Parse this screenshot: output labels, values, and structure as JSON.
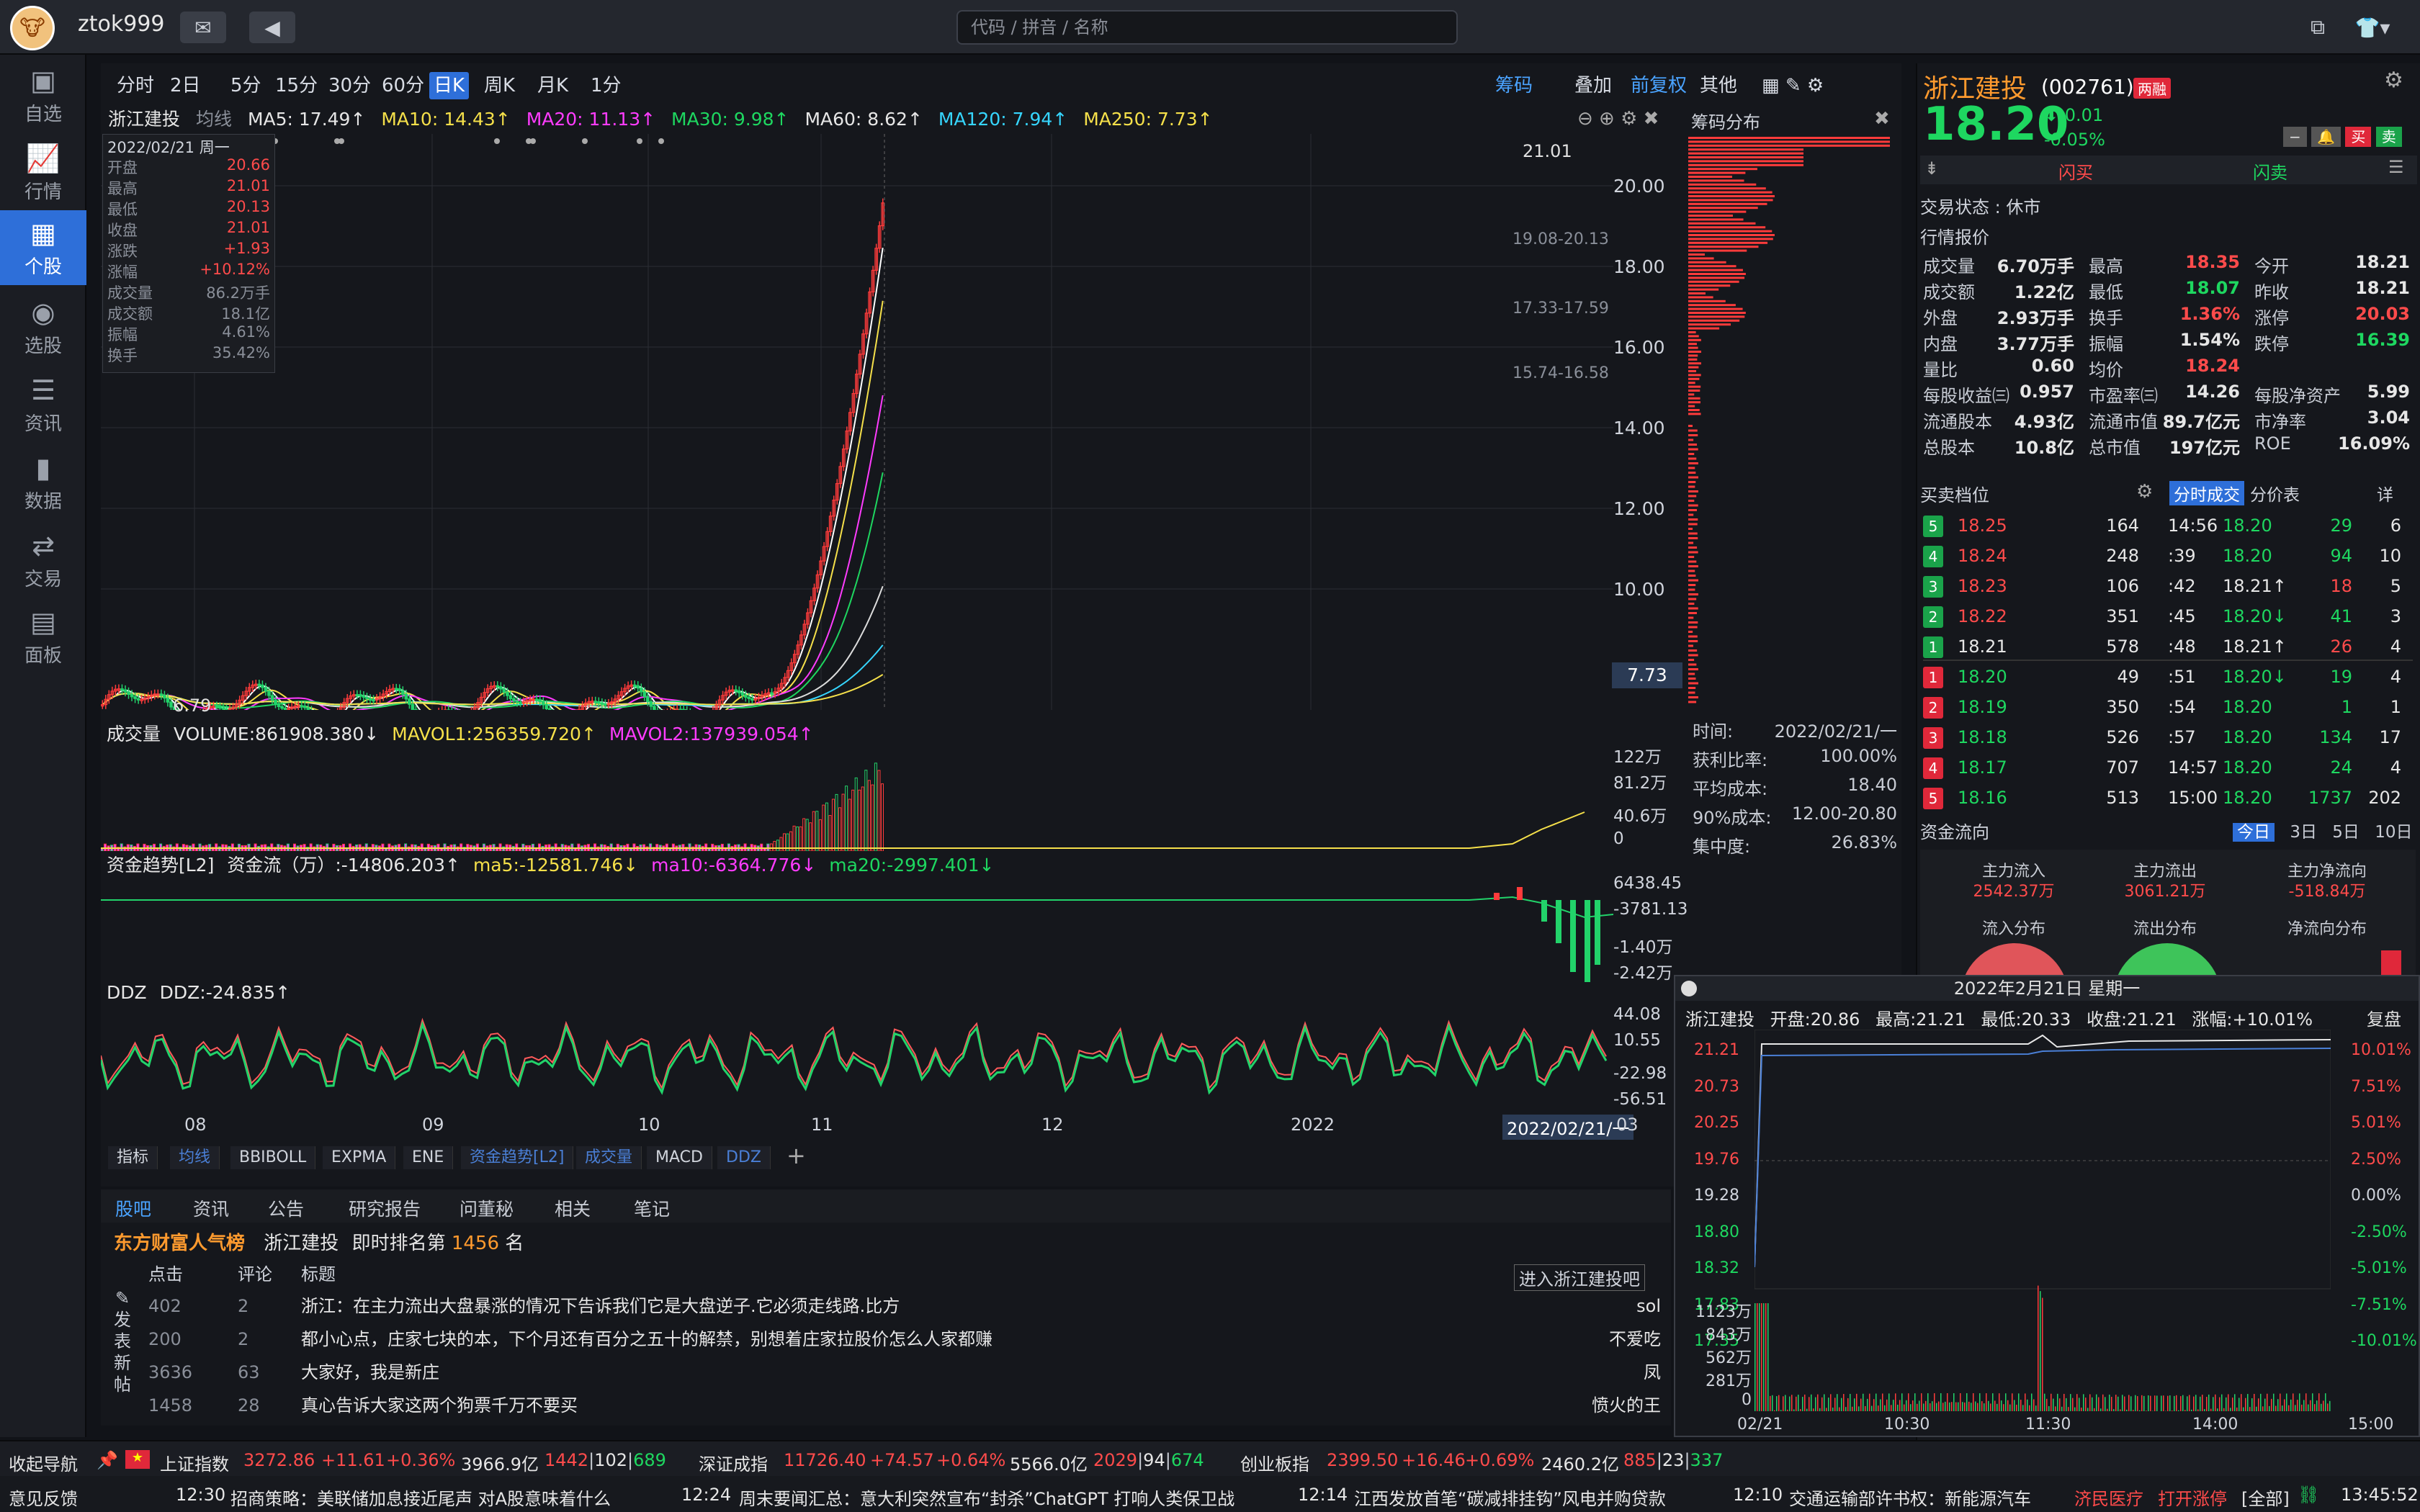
{
  "titlebar": {
    "username": "ztok999",
    "search_placeholder": "代码 / 拼音 / 名称"
  },
  "sidebar": [
    {
      "label": "自选",
      "icon": "watchlist-icon"
    },
    {
      "label": "行情",
      "icon": "market-icon"
    },
    {
      "label": "个股",
      "icon": "stock-icon"
    },
    {
      "label": "选股",
      "icon": "screener-icon"
    },
    {
      "label": "资讯",
      "icon": "news-icon"
    },
    {
      "label": "数据",
      "icon": "data-icon"
    },
    {
      "label": "交易",
      "icon": "trade-icon"
    },
    {
      "label": "面板",
      "icon": "panel-icon"
    }
  ],
  "periods": [
    "分时",
    "2日",
    "5分",
    "15分",
    "30分",
    "60分",
    "日K",
    "周K",
    "月K",
    "1分"
  ],
  "period_active": "日K",
  "chart_toolbar": {
    "chips": "筹码",
    "overlay": "叠加",
    "adjust": "前复权",
    "other": "其他"
  },
  "stock": {
    "name": "浙江建投",
    "code": "(002761)",
    "tag": "两融",
    "price": "18.20",
    "change": "-0.01",
    "change_pct": "-0.05%"
  },
  "ma_line": {
    "name": "浙江建投",
    "mode": "均线",
    "ma5": "MA5: 17.49↑",
    "ma10": "MA10: 14.43↑",
    "ma20": "MA20: 11.13↑",
    "ma30": "MA30: 9.98↑",
    "ma60": "MA60: 8.62↑",
    "ma120": "MA120: 7.94↑",
    "ma250": "MA250: 7.73↑"
  },
  "infobox": {
    "date": "2022/02/21 周一",
    "rows": [
      {
        "k": "开盘",
        "v": "20.66"
      },
      {
        "k": "最高",
        "v": "21.01"
      },
      {
        "k": "最低",
        "v": "20.13"
      },
      {
        "k": "收盘",
        "v": "21.01"
      },
      {
        "k": "涨跌",
        "v": "+1.93"
      },
      {
        "k": "涨幅",
        "v": "+10.12%"
      },
      {
        "k": "成交量",
        "v": "86.2万手"
      },
      {
        "k": "成交额",
        "v": "18.1亿"
      },
      {
        "k": "振幅",
        "v": "4.61%"
      },
      {
        "k": "换手",
        "v": "35.42%"
      }
    ]
  },
  "price_axis": [
    "20.00",
    "18.00",
    "16.00",
    "14.00",
    "12.00",
    "10.00"
  ],
  "price_marks": {
    "high": "21.01",
    "low": "6.79",
    "current": "7.73",
    "zone1": "19.08-20.13",
    "zone2": "17.33-17.59",
    "zone3": "15.74-16.58"
  },
  "chips": {
    "title": "筹码分布",
    "rows": [
      {
        "k": "时间:",
        "v": "2022/02/21/一"
      },
      {
        "k": "获利比率:",
        "v": "100.00%"
      },
      {
        "k": "平均成本:",
        "v": "18.40"
      },
      {
        "k": "90%成本:",
        "v": "12.00-20.80"
      },
      {
        "k": "集中度:",
        "v": "26.83%"
      }
    ]
  },
  "volume": {
    "label": "成交量",
    "volume": "VOLUME:861908.380↓",
    "mavol1": "MAVOL1:256359.720↑",
    "mavol2": "MAVOL2:137939.054↑",
    "axis": [
      "122万",
      "81.2万",
      "40.6万",
      "0"
    ]
  },
  "fund": {
    "label": "资金趋势[L2]",
    "flow": "资金流（万）:-14806.203↑",
    "ma5": "ma5:-12581.746↓",
    "ma10": "ma10:-6364.776↓",
    "ma20": "ma20:-2997.401↓",
    "axis": [
      "6438.45",
      "-3781.13",
      "-1.40万",
      "-2.42万"
    ]
  },
  "ddz": {
    "label": "DDZ",
    "value": "DDZ:-24.835↑",
    "axis": [
      "44.08",
      "10.55",
      "-22.98",
      "-56.51"
    ]
  },
  "xaxis": [
    "08",
    "09",
    "10",
    "11",
    "12",
    "2022",
    "03"
  ],
  "xaxis_cursor": "2022/02/21/一",
  "indicator_tabs": [
    "指标",
    "均线",
    "BBIBOLL",
    "EXPMA",
    "ENE",
    "资金趋势[L2]",
    "成交量",
    "MACD",
    "DDZ"
  ],
  "lower_tabs": [
    "股吧",
    "资讯",
    "公告",
    "研究报告",
    "问董秘",
    "相关",
    "笔记"
  ],
  "forum": {
    "brand": "东方财富人气榜",
    "stock": "浙江建投",
    "rank_pre": "即时排名第",
    "rank": "1456",
    "rank_post": "名",
    "enter": "进入浙江建投吧",
    "post_label": "发表新帖",
    "headers": [
      "点击",
      "评论",
      "标题"
    ],
    "rows": [
      {
        "clicks": "402",
        "comments": "2",
        "title": "浙江：在主力流出大盘暴涨的情况下告诉我们它是大盘逆子.它必须走线路.比方",
        "author": "sol"
      },
      {
        "clicks": "200",
        "comments": "2",
        "title": "都小心点，庄家七块的本，下个月还有百分之五十的解禁，别想着庄家拉股价怎么人家都赚",
        "author": "不爱吃"
      },
      {
        "clicks": "3636",
        "comments": "63",
        "title": "大家好，我是新庄",
        "author": "凤"
      },
      {
        "clicks": "1458",
        "comments": "28",
        "title": "真心告诉大家这两个狗票千万不要买",
        "author": "愤火的王"
      }
    ]
  },
  "quote": {
    "buy_btn": "闪买",
    "sell_btn": "闪卖",
    "status": "交易状态 : 休市",
    "section": "行情报价",
    "rows": [
      [
        {
          "k": "成交量",
          "v": "6.70万手"
        },
        {
          "k": "最高",
          "v": "18.35"
        },
        {
          "k": "今开",
          "v": "18.21"
        }
      ],
      [
        {
          "k": "成交额",
          "v": "1.22亿"
        },
        {
          "k": "最低",
          "v": "18.07"
        },
        {
          "k": "昨收",
          "v": "18.21"
        }
      ],
      [
        {
          "k": "外盘",
          "v": "2.93万手"
        },
        {
          "k": "换手",
          "v": "1.36%"
        },
        {
          "k": "涨停",
          "v": "20.03"
        }
      ],
      [
        {
          "k": "内盘",
          "v": "3.77万手"
        },
        {
          "k": "振幅",
          "v": "1.54%"
        },
        {
          "k": "跌停",
          "v": "16.39"
        }
      ],
      [
        {
          "k": "量比",
          "v": "0.60"
        },
        {
          "k": "均价",
          "v": "18.24"
        },
        {
          "k": "",
          "v": ""
        }
      ],
      [
        {
          "k": "每股收益㈢",
          "v": "0.957"
        },
        {
          "k": "市盈率㈢",
          "v": "14.26"
        },
        {
          "k": "每股净资产",
          "v": "5.99"
        }
      ],
      [
        {
          "k": "流通股本",
          "v": "4.93亿"
        },
        {
          "k": "流通市值",
          "v": "89.7亿元"
        },
        {
          "k": "市净率",
          "v": "3.04"
        }
      ],
      [
        {
          "k": "总股本",
          "v": "10.8亿"
        },
        {
          "k": "总市值",
          "v": "197亿元"
        },
        {
          "k": "ROE",
          "v": "16.09%"
        }
      ]
    ]
  },
  "orderbook": {
    "title": "买卖档位",
    "tab1": "分时成交",
    "tab2": "分价表",
    "detail": "详",
    "asks": [
      {
        "lv": "5",
        "p": "18.25",
        "v": "164"
      },
      {
        "lv": "4",
        "p": "18.24",
        "v": "248"
      },
      {
        "lv": "3",
        "p": "18.23",
        "v": "106"
      },
      {
        "lv": "2",
        "p": "18.22",
        "v": "351"
      },
      {
        "lv": "1",
        "p": "18.21",
        "v": "578"
      }
    ],
    "bids": [
      {
        "lv": "1",
        "p": "18.20",
        "v": "49"
      },
      {
        "lv": "2",
        "p": "18.19",
        "v": "350"
      },
      {
        "lv": "3",
        "p": "18.18",
        "v": "526"
      },
      {
        "lv": "4",
        "p": "18.17",
        "v": "707"
      },
      {
        "lv": "5",
        "p": "18.16",
        "v": "513"
      }
    ],
    "trades": [
      {
        "t": "14:56",
        "p": "18.20",
        "v": "29",
        "n": "6"
      },
      {
        "t": ":39",
        "p": "18.20",
        "v": "94",
        "n": "10"
      },
      {
        "t": ":42",
        "p": "18.21↑",
        "v": "18",
        "n": "5"
      },
      {
        "t": ":45",
        "p": "18.20↓",
        "v": "41",
        "n": "3"
      },
      {
        "t": ":48",
        "p": "18.21↑",
        "v": "26",
        "n": "4"
      },
      {
        "t": ":51",
        "p": "18.20↓",
        "v": "19",
        "n": "4"
      },
      {
        "t": ":54",
        "p": "18.20",
        "v": "1",
        "n": "1"
      },
      {
        "t": ":57",
        "p": "18.20",
        "v": "134",
        "n": "17"
      },
      {
        "t": "14:57",
        "p": "18.20",
        "v": "24",
        "n": "4"
      },
      {
        "t": "15:00",
        "p": "18.20",
        "v": "1737",
        "n": "202"
      }
    ]
  },
  "fundflow": {
    "title": "资金流向",
    "tabs": [
      "今日",
      "3日",
      "5日",
      "10日"
    ],
    "inflow_label": "主力流入",
    "inflow": "2542.37万",
    "outflow_label": "主力流出",
    "outflow": "3061.21万",
    "net_label": "主力净流向",
    "net": "-518.84万",
    "dist_in": "流入分布",
    "dist_out": "流出分布",
    "dist_net": "净流向分布"
  },
  "popup": {
    "date": "2022年2月21日 星期一",
    "name": "浙江建投",
    "open": "开盘:20.86",
    "high": "最高:21.21",
    "low": "最低:20.33",
    "close": "收盘:21.21",
    "pct": "涨幅:+10.01%",
    "replay": "复盘",
    "left_axis": [
      "21.21",
      "20.73",
      "20.25",
      "19.76",
      "19.28",
      "18.80",
      "18.32",
      "17.83",
      "17.35"
    ],
    "right_axis": [
      "10.01%",
      "7.51%",
      "5.01%",
      "2.50%",
      "0.00%",
      "-2.50%",
      "-5.01%",
      "-7.51%",
      "-10.01%"
    ],
    "vol_axis": [
      "1123万",
      "843万",
      "562万",
      "281万",
      "0"
    ],
    "time_axis": [
      "02/21",
      "10:30",
      "11:30",
      "14:00",
      "15:00"
    ]
  },
  "indexbar": {
    "nav": "收起导航",
    "sh": {
      "name": "上证指数",
      "v": "3272.86",
      "c": "+11.61",
      "p": "+0.36%",
      "amt": "3966.9亿",
      "up": "1442",
      "flat": "102",
      "down": "689"
    },
    "sz": {
      "name": "深证成指",
      "v": "11726.40",
      "c": "+74.57",
      "p": "+0.64%",
      "amt": "5566.0亿",
      "up": "2029",
      "flat": "94",
      "down": "674"
    },
    "cy": {
      "name": "创业板指",
      "v": "2399.50",
      "c": "+16.46",
      "p": "+0.69%",
      "amt": "2460.2亿",
      "up": "885",
      "flat": "23",
      "down": "337"
    }
  },
  "newsbar": {
    "feedback": "意见反馈",
    "items": [
      {
        "t": "12:30",
        "h": "招商策略：美联储加息接近尾声 对A股意味着什么"
      },
      {
        "t": "12:24",
        "h": "周末要闻汇总：意大利突然宣布“封杀”ChatGPT 打响人类保卫战"
      },
      {
        "t": "12:14",
        "h": "江西发放首笔“碳减排挂钩”风电并购贷款"
      },
      {
        "t": "12:10",
        "h": "交通运输部许书权：新能源汽车"
      }
    ],
    "hot1": "济民医疗",
    "hot2": "打开涨停",
    "all": "[全部]",
    "time": "13:45:52"
  }
}
